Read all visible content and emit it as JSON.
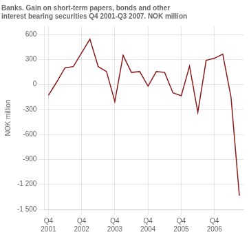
{
  "chart_data": {
    "type": "line",
    "title": "Banks. Gain on short-term papers, bonds and other\ninterest bearing securities Q4 2001-Q3 2007. NOK million",
    "ylabel": "NOK million",
    "categories": [
      "Q4\n2001",
      null,
      null,
      null,
      "Q4\n2002",
      null,
      null,
      null,
      "Q4\n2003",
      null,
      null,
      null,
      "Q4\n2004",
      null,
      null,
      null,
      "Q4\n2005",
      null,
      null,
      null,
      "Q4\n2006",
      null,
      null,
      null
    ],
    "values": [
      -130,
      30,
      200,
      215,
      380,
      545,
      215,
      155,
      -205,
      350,
      145,
      155,
      -20,
      155,
      145,
      -100,
      -135,
      220,
      -335,
      290,
      315,
      365,
      -155,
      -1335
    ],
    "color": "#8B1A1A",
    "ylim": [
      -1500,
      700
    ],
    "yticks": [
      {
        "value": -1500,
        "label": "-1 500"
      },
      {
        "value": -1200,
        "label": "-1 200"
      },
      -900,
      -600,
      -300,
      0,
      300,
      600
    ],
    "grid": true
  }
}
